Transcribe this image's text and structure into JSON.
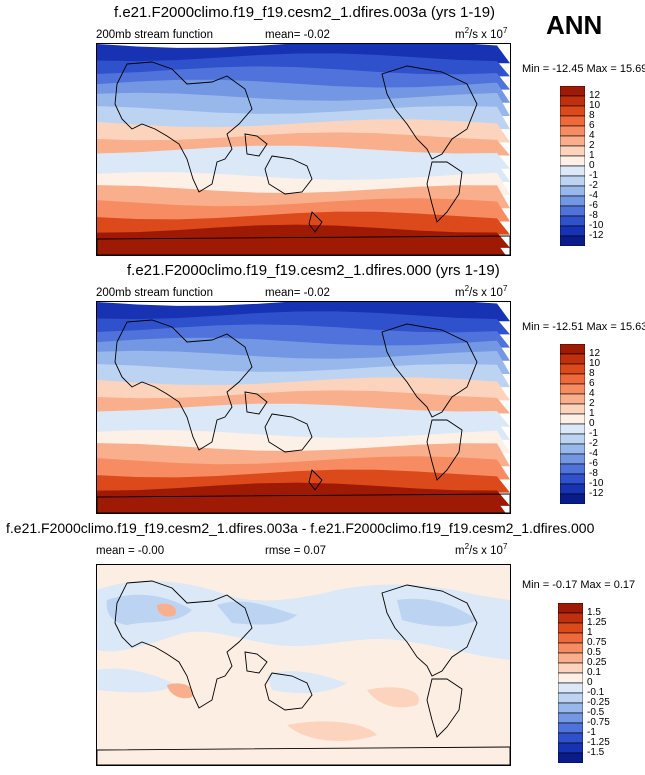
{
  "season": "ANN",
  "panels": [
    {
      "title": "f.e21.F2000climo.f19_f19.cesm2_1.dfires.003a (yrs 1-19)",
      "left_label": "200mb stream function",
      "mid_label": "mean=  -0.02",
      "units_base": "m",
      "units_sup1": "2",
      "units_mid": "/s x 10",
      "units_sup2": "7",
      "minmax": "Min = -12.45 Max =  15.69"
    },
    {
      "title": "f.e21.F2000climo.f19_f19.cesm2_1.dfires.000 (yrs 1-19)",
      "left_label": "200mb stream function",
      "mid_label": "mean=  -0.02",
      "units_base": "m",
      "units_sup1": "2",
      "units_mid": "/s x 10",
      "units_sup2": "7",
      "minmax": "Min = -12.51 Max =  15.63"
    },
    {
      "title": "f.e21.F2000climo.f19_f19.cesm2_1.dfires.003a - f.e21.F2000climo.f19_f19.cesm2_1.dfires.000",
      "left_label": "mean =  -0.00",
      "mid_label": "rmse =  0.07",
      "units_base": "m",
      "units_sup1": "2",
      "units_mid": "/s x 10",
      "units_sup2": "7",
      "minmax": "Min =  -0.17 Max =  0.17"
    }
  ],
  "chart_data": [
    {
      "type": "heatmap",
      "title": "f.e21.F2000climo.f19_f19.cesm2_1.dfires.003a (yrs 1-19)",
      "variable": "200mb stream function",
      "units": "m2/s x 10^7",
      "mean": -0.02,
      "min": -12.45,
      "max": 15.69,
      "colorbar_levels": [
        "12",
        "10",
        "8",
        "6",
        "4",
        "2",
        "1",
        "0",
        "-1",
        "-2",
        "-4",
        "-6",
        "-8",
        "-10",
        "-12"
      ],
      "colorbar_colors": [
        "#9e1a05",
        "#c0300f",
        "#dc4a1c",
        "#ef6a3a",
        "#f78c62",
        "#f9ae8c",
        "#fcd4bd",
        "#fdf0e6",
        "#dbe8f7",
        "#bcd3f2",
        "#98b8ec",
        "#7397e3",
        "#4f73da",
        "#2f52cc",
        "#1733b4",
        "#0a1c8c"
      ],
      "lat_band_values": [
        -12,
        -10,
        -8,
        -6,
        -4,
        -2,
        1,
        2,
        -1,
        -1,
        0,
        2,
        4,
        8,
        12,
        12
      ]
    },
    {
      "type": "heatmap",
      "title": "f.e21.F2000climo.f19_f19.cesm2_1.dfires.000 (yrs 1-19)",
      "variable": "200mb stream function",
      "units": "m2/s x 10^7",
      "mean": -0.02,
      "min": -12.51,
      "max": 15.63,
      "colorbar_levels": [
        "12",
        "10",
        "8",
        "6",
        "4",
        "2",
        "1",
        "0",
        "-1",
        "-2",
        "-4",
        "-6",
        "-8",
        "-10",
        "-12"
      ],
      "colorbar_colors": [
        "#9e1a05",
        "#c0300f",
        "#dc4a1c",
        "#ef6a3a",
        "#f78c62",
        "#f9ae8c",
        "#fcd4bd",
        "#fdf0e6",
        "#dbe8f7",
        "#bcd3f2",
        "#98b8ec",
        "#7397e3",
        "#4f73da",
        "#2f52cc",
        "#1733b4",
        "#0a1c8c"
      ],
      "lat_band_values": [
        -12,
        -10,
        -8,
        -6,
        -4,
        -2,
        1,
        2,
        -1,
        -1,
        0,
        2,
        4,
        8,
        12,
        12
      ]
    },
    {
      "type": "heatmap",
      "title": "f.e21.F2000climo.f19_f19.cesm2_1.dfires.003a - f.e21.F2000climo.f19_f19.cesm2_1.dfires.000",
      "units": "m2/s x 10^7",
      "mean": -0.0,
      "rmse": 0.07,
      "min": -0.17,
      "max": 0.17,
      "colorbar_levels": [
        "1.5",
        "1.25",
        "1",
        "0.75",
        "0.5",
        "0.25",
        "0.1",
        "0",
        "-0.1",
        "-0.25",
        "-0.5",
        "-0.75",
        "-1",
        "-1.25",
        "-1.5"
      ],
      "colorbar_colors": [
        "#9e1a05",
        "#c0300f",
        "#dc4a1c",
        "#ef6a3a",
        "#f78c62",
        "#f9ae8c",
        "#fcd4bd",
        "#fdf0e6",
        "#dbe8f7",
        "#bcd3f2",
        "#98b8ec",
        "#7397e3",
        "#4f73da",
        "#2f52cc",
        "#1733b4",
        "#0a1c8c"
      ]
    }
  ]
}
